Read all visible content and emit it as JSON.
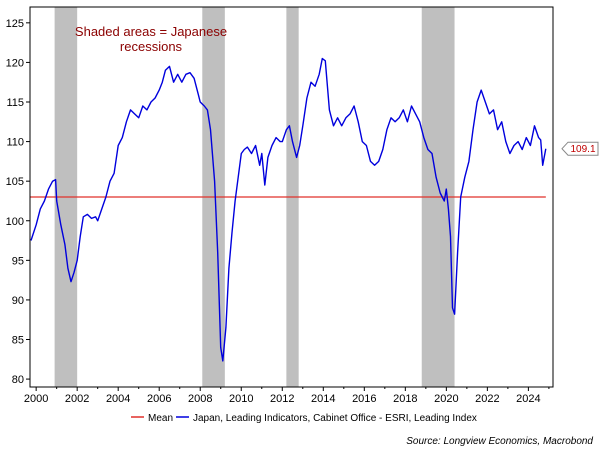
{
  "chart_data": {
    "type": "line",
    "title": "",
    "xlabel": "",
    "ylabel": "",
    "xlim": [
      1999.7,
      2025.2
    ],
    "ylim": [
      79,
      127
    ],
    "grid": false,
    "x_ticks": [
      2000,
      2002,
      2004,
      2006,
      2008,
      2010,
      2012,
      2014,
      2016,
      2018,
      2020,
      2022,
      2024
    ],
    "y_ticks": [
      80,
      85,
      90,
      95,
      100,
      105,
      110,
      115,
      120,
      125
    ],
    "annotation": [
      "Shaded areas = Japanese",
      "recessions"
    ],
    "recessions": [
      [
        2000.9,
        2002.0
      ],
      [
        2008.1,
        2009.2
      ],
      [
        2012.2,
        2012.8
      ],
      [
        2018.8,
        2020.4
      ]
    ],
    "mean": {
      "name": "Mean",
      "value": 103.0,
      "color": "#e0302a"
    },
    "series": [
      {
        "name": "Japan, Leading Indicators, Cabinet Office - ESRI, Leading Index",
        "color": "#0000dd",
        "last_value_label": "109.1",
        "points": [
          [
            1999.75,
            97.5
          ],
          [
            2000.0,
            99.5
          ],
          [
            2000.2,
            101.5
          ],
          [
            2000.4,
            102.5
          ],
          [
            2000.6,
            104.0
          ],
          [
            2000.8,
            105.0
          ],
          [
            2000.95,
            105.2
          ],
          [
            2001.0,
            102.5
          ],
          [
            2001.2,
            99.5
          ],
          [
            2001.4,
            97.0
          ],
          [
            2001.55,
            94.0
          ],
          [
            2001.7,
            92.3
          ],
          [
            2001.85,
            93.5
          ],
          [
            2002.0,
            95.0
          ],
          [
            2002.15,
            98.0
          ],
          [
            2002.3,
            100.5
          ],
          [
            2002.5,
            100.8
          ],
          [
            2002.7,
            100.3
          ],
          [
            2002.9,
            100.5
          ],
          [
            2003.0,
            100.0
          ],
          [
            2003.2,
            101.5
          ],
          [
            2003.4,
            103.0
          ],
          [
            2003.6,
            105.0
          ],
          [
            2003.8,
            106.0
          ],
          [
            2004.0,
            109.5
          ],
          [
            2004.2,
            110.5
          ],
          [
            2004.4,
            112.5
          ],
          [
            2004.6,
            114.0
          ],
          [
            2004.8,
            113.5
          ],
          [
            2005.0,
            113.0
          ],
          [
            2005.2,
            114.5
          ],
          [
            2005.4,
            114.0
          ],
          [
            2005.6,
            115.0
          ],
          [
            2005.8,
            115.5
          ],
          [
            2006.0,
            116.5
          ],
          [
            2006.15,
            117.5
          ],
          [
            2006.3,
            119.0
          ],
          [
            2006.5,
            119.5
          ],
          [
            2006.7,
            117.5
          ],
          [
            2006.9,
            118.5
          ],
          [
            2007.1,
            117.5
          ],
          [
            2007.3,
            118.5
          ],
          [
            2007.5,
            118.7
          ],
          [
            2007.7,
            118.0
          ],
          [
            2007.9,
            116.0
          ],
          [
            2008.0,
            115.0
          ],
          [
            2008.2,
            114.5
          ],
          [
            2008.35,
            114.0
          ],
          [
            2008.5,
            111.5
          ],
          [
            2008.7,
            105.0
          ],
          [
            2008.85,
            96.0
          ],
          [
            2009.0,
            84.0
          ],
          [
            2009.1,
            82.3
          ],
          [
            2009.25,
            86.5
          ],
          [
            2009.4,
            94.0
          ],
          [
            2009.55,
            98.5
          ],
          [
            2009.7,
            102.5
          ],
          [
            2009.85,
            105.5
          ],
          [
            2010.0,
            108.5
          ],
          [
            2010.15,
            109.0
          ],
          [
            2010.3,
            109.3
          ],
          [
            2010.5,
            108.5
          ],
          [
            2010.7,
            109.5
          ],
          [
            2010.9,
            107.0
          ],
          [
            2011.0,
            108.5
          ],
          [
            2011.15,
            104.5
          ],
          [
            2011.3,
            108.0
          ],
          [
            2011.5,
            109.5
          ],
          [
            2011.7,
            110.5
          ],
          [
            2011.9,
            110.0
          ],
          [
            2012.0,
            110.0
          ],
          [
            2012.2,
            111.5
          ],
          [
            2012.35,
            112.0
          ],
          [
            2012.5,
            110.0
          ],
          [
            2012.7,
            108.0
          ],
          [
            2012.85,
            109.5
          ],
          [
            2013.0,
            112.0
          ],
          [
            2013.2,
            115.5
          ],
          [
            2013.4,
            117.5
          ],
          [
            2013.6,
            117.0
          ],
          [
            2013.8,
            118.5
          ],
          [
            2013.95,
            120.5
          ],
          [
            2014.1,
            120.2
          ],
          [
            2014.3,
            114.0
          ],
          [
            2014.5,
            112.0
          ],
          [
            2014.7,
            113.0
          ],
          [
            2014.9,
            112.0
          ],
          [
            2015.1,
            113.0
          ],
          [
            2015.3,
            113.5
          ],
          [
            2015.5,
            114.5
          ],
          [
            2015.7,
            112.5
          ],
          [
            2015.9,
            110.0
          ],
          [
            2016.1,
            109.5
          ],
          [
            2016.3,
            107.5
          ],
          [
            2016.5,
            107.0
          ],
          [
            2016.7,
            107.5
          ],
          [
            2016.9,
            109.0
          ],
          [
            2017.1,
            111.5
          ],
          [
            2017.3,
            113.0
          ],
          [
            2017.5,
            112.5
          ],
          [
            2017.7,
            113.0
          ],
          [
            2017.9,
            114.0
          ],
          [
            2018.1,
            112.5
          ],
          [
            2018.3,
            114.5
          ],
          [
            2018.5,
            113.5
          ],
          [
            2018.7,
            112.5
          ],
          [
            2018.9,
            110.5
          ],
          [
            2019.1,
            109.0
          ],
          [
            2019.3,
            108.5
          ],
          [
            2019.5,
            105.5
          ],
          [
            2019.7,
            103.5
          ],
          [
            2019.9,
            102.5
          ],
          [
            2020.0,
            104.0
          ],
          [
            2020.1,
            101.5
          ],
          [
            2020.2,
            98.0
          ],
          [
            2020.3,
            89.0
          ],
          [
            2020.4,
            88.2
          ],
          [
            2020.55,
            96.0
          ],
          [
            2020.7,
            103.0
          ],
          [
            2020.9,
            105.5
          ],
          [
            2021.1,
            107.5
          ],
          [
            2021.3,
            111.5
          ],
          [
            2021.5,
            115.0
          ],
          [
            2021.7,
            116.5
          ],
          [
            2021.9,
            115.0
          ],
          [
            2022.1,
            113.5
          ],
          [
            2022.3,
            114.0
          ],
          [
            2022.5,
            111.5
          ],
          [
            2022.7,
            112.5
          ],
          [
            2022.9,
            110.0
          ],
          [
            2023.1,
            108.5
          ],
          [
            2023.3,
            109.5
          ],
          [
            2023.5,
            110.0
          ],
          [
            2023.7,
            109.0
          ],
          [
            2023.9,
            110.5
          ],
          [
            2024.1,
            109.5
          ],
          [
            2024.3,
            112.0
          ],
          [
            2024.5,
            110.5
          ],
          [
            2024.6,
            110.2
          ],
          [
            2024.7,
            107.0
          ],
          [
            2024.85,
            109.1
          ]
        ]
      }
    ],
    "legend": {
      "placement": "bottom",
      "entries": [
        {
          "label": "Mean",
          "color": "#e0302a"
        },
        {
          "label": "Japan, Leading Indicators, Cabinet Office - ESRI, Leading Index",
          "color": "#0000dd"
        }
      ]
    },
    "source": "Source: Longview Economics, Macrobond"
  }
}
